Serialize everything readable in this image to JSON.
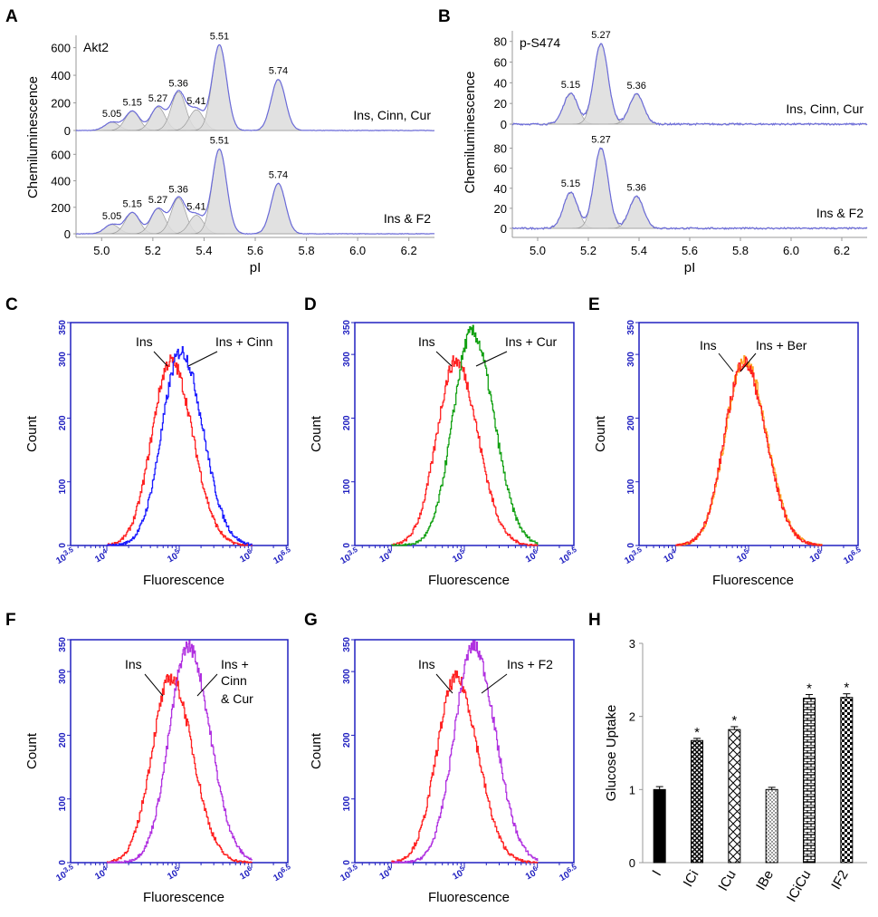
{
  "chart_data": {
    "peak_panels": [
      {
        "id": "A",
        "label": "A",
        "type": "line",
        "ylabel": "Chemiluminescence",
        "xlabel": "pI",
        "x_ticks": [
          "5.0",
          "5.2",
          "5.4",
          "5.6",
          "5.8",
          "6.0",
          "6.2"
        ],
        "xlim": [
          4.9,
          6.3
        ],
        "traces": [
          {
            "name": "Ins, Cinn, Cur",
            "corner_label": "Akt2",
            "ylim": [
              0,
              650
            ],
            "y_ticks": [
              "0",
              "200",
              "400",
              "600"
            ],
            "peaks": [
              {
                "pi": 5.05,
                "pos": 5.04,
                "height": 60,
                "label": "5.05"
              },
              {
                "pi": 5.15,
                "pos": 5.12,
                "height": 140,
                "label": "5.15"
              },
              {
                "pi": 5.27,
                "pos": 5.22,
                "height": 170,
                "label": "5.27"
              },
              {
                "pi": 5.36,
                "pos": 5.3,
                "height": 280,
                "label": "5.36"
              },
              {
                "pi": 5.41,
                "pos": 5.37,
                "height": 150,
                "label": "5.41"
              },
              {
                "pi": 5.51,
                "pos": 5.46,
                "height": 620,
                "label": "5.51"
              },
              {
                "pi": 5.74,
                "pos": 5.69,
                "height": 370,
                "label": "5.74"
              }
            ]
          },
          {
            "name": "Ins & F2",
            "ylim": [
              0,
              650
            ],
            "y_ticks": [
              "0",
              "200",
              "400",
              "600"
            ],
            "peaks": [
              {
                "pi": 5.05,
                "pos": 5.04,
                "height": 70,
                "label": "5.05"
              },
              {
                "pi": 5.15,
                "pos": 5.12,
                "height": 160,
                "label": "5.15"
              },
              {
                "pi": 5.27,
                "pos": 5.22,
                "height": 190,
                "label": "5.27"
              },
              {
                "pi": 5.36,
                "pos": 5.3,
                "height": 270,
                "label": "5.36"
              },
              {
                "pi": 5.41,
                "pos": 5.37,
                "height": 140,
                "label": "5.41"
              },
              {
                "pi": 5.51,
                "pos": 5.46,
                "height": 640,
                "label": "5.51"
              },
              {
                "pi": 5.74,
                "pos": 5.69,
                "height": 380,
                "label": "5.74"
              }
            ]
          }
        ]
      },
      {
        "id": "B",
        "label": "B",
        "type": "line",
        "ylabel": "Chemiluminescence",
        "xlabel": "pI",
        "x_ticks": [
          "5.0",
          "5.2",
          "5.4",
          "5.6",
          "5.8",
          "6.0",
          "6.2"
        ],
        "xlim": [
          4.9,
          6.3
        ],
        "traces": [
          {
            "name": "Ins, Cinn, Cur",
            "corner_label": "p-S474",
            "ylim": [
              0,
              85
            ],
            "y_ticks": [
              "0",
              "20",
              "40",
              "60",
              "80"
            ],
            "peaks": [
              {
                "pi": 5.15,
                "pos": 5.13,
                "height": 30,
                "label": "5.15"
              },
              {
                "pi": 5.27,
                "pos": 5.25,
                "height": 78,
                "label": "5.27"
              },
              {
                "pi": 5.36,
                "pos": 5.39,
                "height": 29,
                "label": "5.36"
              }
            ]
          },
          {
            "name": "Ins & F2",
            "ylim": [
              0,
              85
            ],
            "y_ticks": [
              "0",
              "20",
              "40",
              "60",
              "80"
            ],
            "peaks": [
              {
                "pi": 5.15,
                "pos": 5.13,
                "height": 36,
                "label": "5.15"
              },
              {
                "pi": 5.27,
                "pos": 5.25,
                "height": 80,
                "label": "5.27"
              },
              {
                "pi": 5.36,
                "pos": 5.39,
                "height": 32,
                "label": "5.36"
              }
            ]
          }
        ]
      }
    ],
    "flow_panels": [
      {
        "id": "C",
        "label": "C",
        "type": "line",
        "ylabel": "Count",
        "xlabel": "Fluorescence",
        "series": [
          {
            "name": "Ins",
            "color": "#ff2020",
            "peak_log": 4.88,
            "peak": 290
          },
          {
            "name": "Ins + Cinn",
            "color": "#1a1aff",
            "peak_log": 5.02,
            "peak": 305
          }
        ],
        "annotations": [
          "Ins",
          "Ins + Cinn"
        ]
      },
      {
        "id": "D",
        "label": "D",
        "type": "line",
        "ylabel": "Count",
        "xlabel": "Fluorescence",
        "series": [
          {
            "name": "Ins",
            "color": "#ff2020",
            "peak_log": 4.88,
            "peak": 290
          },
          {
            "name": "Ins + Cur",
            "color": "#12a012",
            "peak_log": 5.1,
            "peak": 335
          }
        ],
        "annotations": [
          "Ins",
          "Ins + Cur"
        ]
      },
      {
        "id": "E",
        "label": "E",
        "type": "line",
        "ylabel": "Count",
        "xlabel": "Fluorescence",
        "series": [
          {
            "name": "Ins + Ber",
            "color": "#ffa020",
            "peak_log": 4.94,
            "peak": 292
          },
          {
            "name": "Ins",
            "color": "#ff2020",
            "peak_log": 4.93,
            "peak": 288
          }
        ],
        "annotations": [
          "Ins",
          "Ins + Ber"
        ]
      },
      {
        "id": "F",
        "label": "F",
        "type": "line",
        "ylabel": "Count",
        "xlabel": "Fluorescence",
        "series": [
          {
            "name": "Ins",
            "color": "#ff2020",
            "peak_log": 4.88,
            "peak": 290
          },
          {
            "name": "Ins + Cinn & Cur",
            "color": "#b030e0",
            "peak_log": 5.12,
            "peak": 340
          }
        ],
        "annotations": [
          "Ins",
          "Ins +",
          "Cinn",
          "& Cur"
        ]
      },
      {
        "id": "G",
        "label": "G",
        "type": "line",
        "ylabel": "Count",
        "xlabel": "Fluorescence",
        "series": [
          {
            "name": "Ins",
            "color": "#ff2020",
            "peak_log": 4.88,
            "peak": 290
          },
          {
            "name": "Ins + F2",
            "color": "#b030e0",
            "peak_log": 5.12,
            "peak": 340
          }
        ],
        "annotations": [
          "Ins",
          "Ins + F2"
        ]
      }
    ],
    "flow_axis": {
      "x_log_range": [
        3.5,
        6.5
      ],
      "x_tick_exponents": [
        "3.5",
        "4",
        "5",
        "6",
        "6.5"
      ],
      "x_tick_base": "10",
      "y_ticks": [
        "0",
        "100",
        "200",
        "300",
        "350"
      ],
      "ylim": [
        0,
        350
      ]
    },
    "bar_panel": {
      "id": "H",
      "label": "H",
      "type": "bar",
      "ylabel": "Glucose Uptake",
      "ylim": [
        0,
        3
      ],
      "y_ticks": [
        "0",
        "1",
        "2",
        "3"
      ],
      "categories": [
        "I",
        "ICi",
        "ICu",
        "IBe",
        "ICiCu",
        "IF2"
      ],
      "values": [
        1.0,
        1.67,
        1.82,
        1.0,
        2.25,
        2.26
      ],
      "errors": [
        0.04,
        0.03,
        0.04,
        0.03,
        0.05,
        0.05
      ],
      "significant": [
        false,
        true,
        true,
        false,
        true,
        true
      ],
      "significance_mark": "*",
      "patterns": [
        "solid",
        "cross",
        "crosshatch",
        "dots",
        "brick",
        "checker"
      ]
    }
  }
}
